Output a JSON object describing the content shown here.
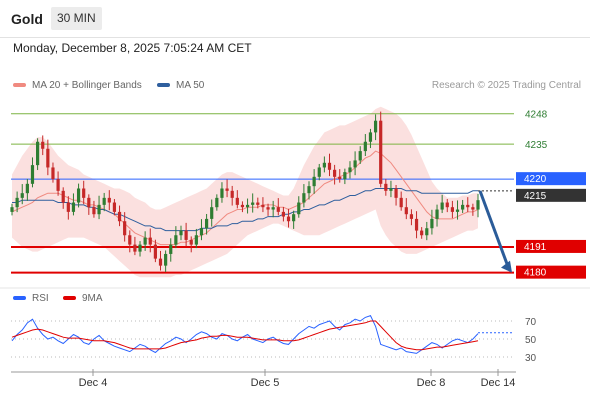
{
  "header": {
    "symbol": "Gold",
    "timeframe": "30 MIN",
    "datetime": "Monday, December 8, 2025 7:05:24 AM CET"
  },
  "legend": {
    "ma20_label": "MA 20 + Bollinger Bands",
    "ma50_label": "MA 50",
    "credit": "Research © 2025 Trading Central",
    "rsi_label": "RSI",
    "rsi_ma_label": "9MA"
  },
  "colors": {
    "ma20": "#f08a80",
    "ma50": "#2f5f9e",
    "up": "#2e7d32",
    "down": "#c62828",
    "support": "#e00000",
    "resistance": "#7cb342",
    "pivot": "#2962ff",
    "arrow": "#2b5c99",
    "bollinger_fill": "#fbe0df"
  },
  "chart_data": [
    {
      "type": "line",
      "name": "price",
      "levels": [
        {
          "value": 4248,
          "label": "4248",
          "kind": "resistance"
        },
        {
          "value": 4235,
          "label": "4235",
          "kind": "resistance"
        },
        {
          "value": 4220,
          "label": "4220",
          "kind": "pivot"
        },
        {
          "value": 4215,
          "label": "4215",
          "kind": "current"
        },
        {
          "value": 4191,
          "label": "4191",
          "kind": "support"
        },
        {
          "value": 4180,
          "label": "4180",
          "kind": "support"
        }
      ],
      "x_ticks": [
        "Dec 4",
        "Dec 5",
        "Dec 8",
        "Dec 14"
      ],
      "close_series": [
        4208,
        4212,
        4214,
        4218,
        4226,
        4236,
        4233,
        4225,
        4220,
        4215,
        4210,
        4206,
        4210,
        4216,
        4212,
        4208,
        4205,
        4209,
        4212,
        4210,
        4206,
        4202,
        4196,
        4192,
        4189,
        4192,
        4195,
        4192,
        4186,
        4183,
        4188,
        4192,
        4196,
        4198,
        4194,
        4192,
        4196,
        4199,
        4203,
        4208,
        4212,
        4216,
        4215,
        4212,
        4209,
        4208,
        4209,
        4210,
        4209,
        4208,
        4207,
        4208,
        4206,
        4204,
        4202,
        4205,
        4210,
        4214,
        4217,
        4221,
        4225,
        4227,
        4224,
        4221,
        4220,
        4223,
        4225,
        4228,
        4232,
        4236,
        4240,
        4245,
        4218,
        4215,
        4216,
        4212,
        4208,
        4205,
        4203,
        4198,
        4196,
        4199,
        4203,
        4207,
        4210,
        4208,
        4206,
        4207,
        4209,
        4208,
        4207,
        4211
      ],
      "ma20_series": [
        4206,
        4207,
        4208,
        4209,
        4210,
        4212,
        4213,
        4214,
        4214,
        4214,
        4213,
        4212,
        4211,
        4211,
        4210,
        4209,
        4209,
        4208,
        4207,
        4206,
        4205,
        4203,
        4201,
        4199,
        4197,
        4196,
        4195,
        4194,
        4193,
        4192,
        4192,
        4192,
        4192,
        4193,
        4193,
        4194,
        4195,
        4196,
        4197,
        4199,
        4201,
        4203,
        4205,
        4206,
        4207,
        4207,
        4208,
        4208,
        4208,
        4209,
        4209,
        4209,
        4208,
        4208,
        4207,
        4208,
        4209,
        4210,
        4212,
        4214,
        4216,
        4218,
        4219,
        4220,
        4221,
        4222,
        4223,
        4225,
        4227,
        4229,
        4230,
        4232,
        4231,
        4229,
        4227,
        4224,
        4221,
        4218,
        4215,
        4212,
        4209,
        4206,
        4204,
        4203,
        4203,
        4203,
        4203,
        4204,
        4205,
        4206,
        4206,
        4207
      ],
      "ma50_series": [
        4210,
        4210,
        4211,
        4211,
        4211,
        4211,
        4211,
        4211,
        4211,
        4210,
        4210,
        4210,
        4209,
        4209,
        4209,
        4208,
        4208,
        4207,
        4207,
        4206,
        4205,
        4205,
        4204,
        4203,
        4202,
        4201,
        4200,
        4200,
        4199,
        4199,
        4198,
        4198,
        4198,
        4198,
        4198,
        4198,
        4198,
        4199,
        4199,
        4199,
        4200,
        4200,
        4200,
        4201,
        4201,
        4202,
        4202,
        4202,
        4203,
        4203,
        4204,
        4204,
        4204,
        4205,
        4205,
        4206,
        4206,
        4207,
        4207,
        4208,
        4209,
        4209,
        4210,
        4211,
        4211,
        4212,
        4213,
        4213,
        4214,
        4215,
        4215,
        4216,
        4216,
        4216,
        4216,
        4216,
        4216,
        4215,
        4215,
        4215,
        4214,
        4214,
        4214,
        4214,
        4214,
        4214,
        4214,
        4214,
        4214,
        4214,
        4215,
        4215
      ],
      "bollinger_upper": [
        4222,
        4226,
        4230,
        4233,
        4236,
        4238,
        4238,
        4236,
        4233,
        4230,
        4228,
        4226,
        4225,
        4224,
        4222,
        4221,
        4220,
        4219,
        4218,
        4217,
        4216,
        4216,
        4215,
        4214,
        4212,
        4211,
        4210,
        4208,
        4207,
        4207,
        4208,
        4209,
        4210,
        4211,
        4212,
        4213,
        4214,
        4215,
        4216,
        4218,
        4220,
        4222,
        4223,
        4223,
        4222,
        4221,
        4220,
        4219,
        4218,
        4217,
        4216,
        4215,
        4214,
        4213,
        4213,
        4216,
        4221,
        4226,
        4230,
        4234,
        4237,
        4240,
        4241,
        4242,
        4243,
        4243,
        4244,
        4245,
        4246,
        4247,
        4248,
        4250,
        4251,
        4250,
        4249,
        4248,
        4246,
        4243,
        4239,
        4234,
        4229,
        4224,
        4219,
        4216,
        4214,
        4212,
        4212,
        4212,
        4213,
        4213,
        4214,
        4214
      ],
      "bollinger_lower": [
        4195,
        4193,
        4191,
        4190,
        4189,
        4189,
        4190,
        4191,
        4192,
        4193,
        4194,
        4195,
        4195,
        4195,
        4195,
        4194,
        4193,
        4192,
        4191,
        4189,
        4187,
        4185,
        4183,
        4181,
        4179,
        4178,
        4178,
        4178,
        4178,
        4178,
        4178,
        4178,
        4179,
        4179,
        4180,
        4181,
        4182,
        4183,
        4184,
        4185,
        4186,
        4187,
        4188,
        4190,
        4192,
        4194,
        4196,
        4197,
        4198,
        4199,
        4200,
        4201,
        4201,
        4200,
        4199,
        4198,
        4197,
        4196,
        4196,
        4196,
        4196,
        4197,
        4198,
        4199,
        4200,
        4201,
        4202,
        4203,
        4204,
        4205,
        4206,
        4207,
        4200,
        4196,
        4193,
        4191,
        4189,
        4188,
        4188,
        4188,
        4189,
        4190,
        4191,
        4192,
        4193,
        4194,
        4195,
        4196,
        4197,
        4198,
        4198,
        4199
      ],
      "ylim": [
        4176,
        4256
      ],
      "forecast_arrow": {
        "from": 4215,
        "to": 4180
      }
    },
    {
      "type": "line",
      "name": "rsi",
      "yticks": [
        "70",
        "50",
        "30"
      ],
      "ylim": [
        20,
        80
      ],
      "rsi_series": [
        48,
        55,
        60,
        68,
        72,
        62,
        55,
        50,
        52,
        48,
        45,
        50,
        55,
        52,
        46,
        44,
        50,
        54,
        48,
        45,
        42,
        40,
        38,
        36,
        40,
        44,
        42,
        38,
        35,
        40,
        45,
        48,
        52,
        50,
        46,
        50,
        55,
        58,
        56,
        52,
        50,
        56,
        54,
        50,
        48,
        52,
        55,
        50,
        48,
        46,
        50,
        52,
        48,
        45,
        44,
        50,
        56,
        60,
        64,
        62,
        66,
        68,
        70,
        64,
        60,
        66,
        68,
        72,
        70,
        74,
        76,
        64,
        44,
        42,
        40,
        38,
        40,
        36,
        35,
        34,
        38,
        42,
        46,
        44,
        40,
        44,
        48,
        50,
        48,
        46,
        50,
        56
      ],
      "rsi_ma_series": [
        52,
        54,
        56,
        58,
        60,
        61,
        60,
        58,
        56,
        54,
        52,
        51,
        51,
        51,
        50,
        49,
        48,
        48,
        48,
        47,
        46,
        44,
        42,
        40,
        39,
        39,
        39,
        39,
        39,
        39,
        40,
        42,
        44,
        46,
        47,
        48,
        49,
        51,
        52,
        53,
        53,
        54,
        54,
        53,
        52,
        52,
        52,
        51,
        50,
        49,
        49,
        49,
        49,
        48,
        48,
        48,
        49,
        51,
        53,
        55,
        57,
        59,
        61,
        62,
        63,
        64,
        65,
        66,
        67,
        68,
        70,
        70,
        64,
        58,
        52,
        46,
        42,
        40,
        39,
        38,
        38,
        39,
        40,
        41,
        41,
        42,
        43,
        44,
        45,
        46,
        47,
        48
      ],
      "rsi_dotted_level": 57
    }
  ]
}
